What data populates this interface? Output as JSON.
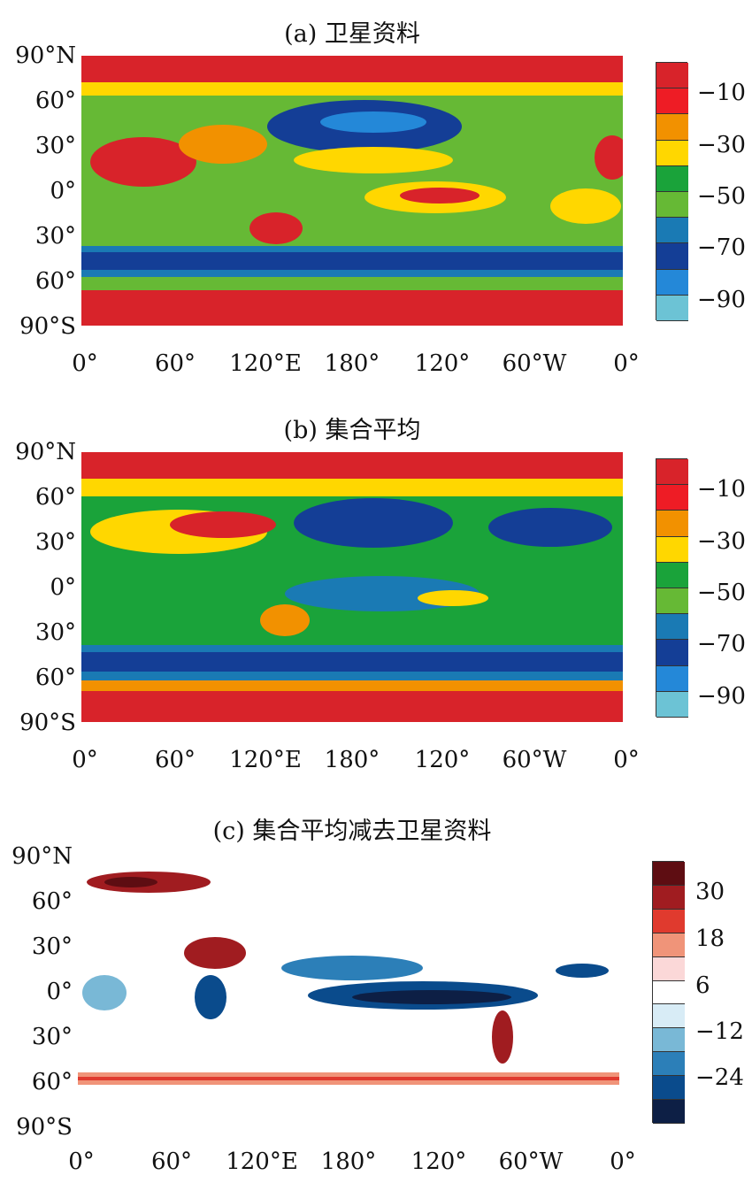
{
  "panels": [
    {
      "title": "(a) 卫星资料",
      "legend": {
        "colors": [
          "#d8232a",
          "#ee1c25",
          "#f29100",
          "#ffd700",
          "#1aa33a",
          "#66b935",
          "#1a7ab4",
          "#143e96",
          "#2488d8",
          "#6cc3d5"
        ],
        "labels": [
          "-10",
          "-30",
          "-50",
          "-70",
          "-90"
        ]
      }
    },
    {
      "title": "(b) 集合平均",
      "legend": {
        "colors": [
          "#d8232a",
          "#ee1c25",
          "#f29100",
          "#ffd700",
          "#1aa33a",
          "#66b935",
          "#1a7ab4",
          "#143e96",
          "#2488d8",
          "#6cc3d5"
        ],
        "labels": [
          "-10",
          "-30",
          "-50",
          "-70",
          "-90"
        ]
      }
    },
    {
      "title": "(c) 集合平均减去卫星资料",
      "legend": {
        "colors": [
          "#5e0d12",
          "#a01c20",
          "#e03a2e",
          "#f09479",
          "#fbd8d8",
          "#ffffff",
          "#d8ecf6",
          "#79b8d6",
          "#2c7fb8",
          "#0a4b8c",
          "#0d1f45"
        ],
        "labels": [
          "30",
          "18",
          "6",
          "-12",
          "-24"
        ]
      }
    }
  ],
  "axes": {
    "y_ticks": [
      "90°N",
      "60°",
      "30°",
      "0°",
      "30°",
      "60°",
      "90°S"
    ],
    "x_ticks": [
      "0°",
      "60°",
      "120°E",
      "180°",
      "120°",
      "60°W",
      "0°"
    ]
  }
}
